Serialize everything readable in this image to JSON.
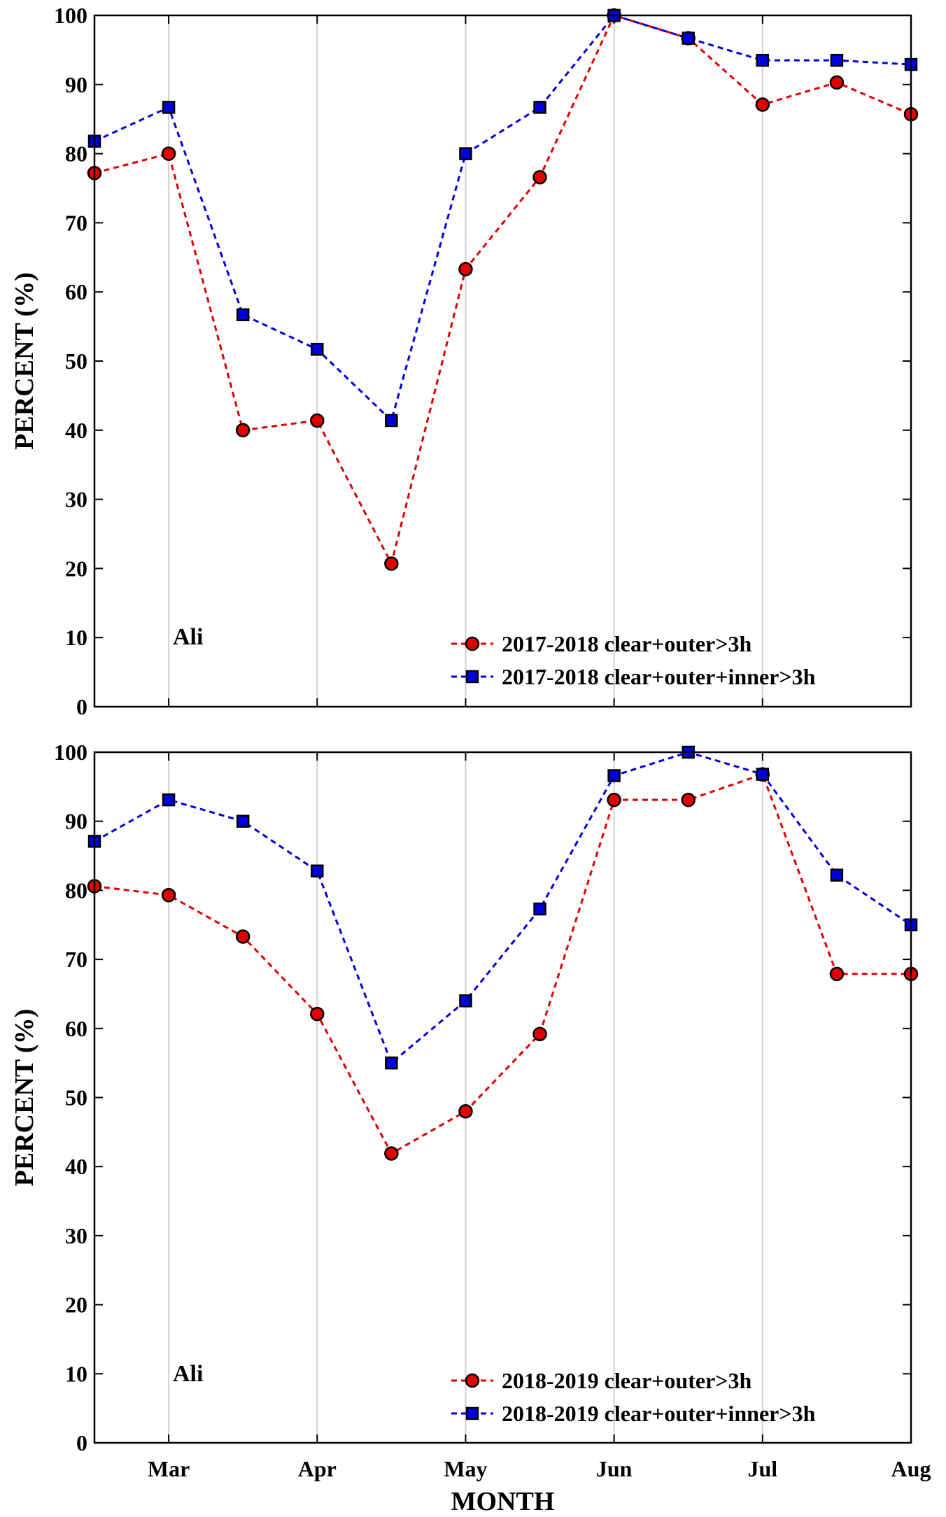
{
  "chart_data": [
    {
      "type": "line",
      "panel": "top",
      "station": "Ali",
      "xlabel": "",
      "ylabel": "PERCENT (%)",
      "ylim": [
        0,
        100
      ],
      "yticks": [
        "0",
        "10",
        "20",
        "30",
        "40",
        "50",
        "60",
        "70",
        "80",
        "90",
        "100"
      ],
      "xtick_labels": [],
      "x": [
        2.5,
        3,
        3.5,
        4,
        4.5,
        5,
        5.5,
        6,
        6.5,
        7,
        7.5,
        8
      ],
      "grid": "vertical",
      "legend_position": "bottom-right",
      "series": [
        {
          "name": "2017-2018 clear+outer>3h",
          "color": "#e00000",
          "marker": "circle",
          "values": [
            77.2,
            80.0,
            40.0,
            41.4,
            20.7,
            63.3,
            76.6,
            100.0,
            96.7,
            87.1,
            90.3,
            85.7
          ]
        },
        {
          "name": "2017-2018 clear+outer+inner>3h",
          "color": "#0000dd",
          "marker": "square",
          "values": [
            81.8,
            86.7,
            56.7,
            51.7,
            41.4,
            80.0,
            86.7,
            100.0,
            96.7,
            93.5,
            93.5,
            92.9
          ]
        }
      ]
    },
    {
      "type": "line",
      "panel": "bottom",
      "station": "Ali",
      "xlabel": "MONTH",
      "ylabel": "PERCENT (%)",
      "ylim": [
        0,
        100
      ],
      "yticks": [
        "0",
        "10",
        "20",
        "30",
        "40",
        "50",
        "60",
        "70",
        "80",
        "90",
        "100"
      ],
      "xtick_labels": [
        "Mar",
        "Apr",
        "May",
        "Jun",
        "Jul",
        "Aug"
      ],
      "x": [
        2.5,
        3,
        3.5,
        4,
        4.5,
        5,
        5.5,
        6,
        6.5,
        7,
        7.5,
        8
      ],
      "grid": "vertical",
      "legend_position": "bottom-right",
      "series": [
        {
          "name": "2018-2019 clear+outer>3h",
          "color": "#e00000",
          "marker": "circle",
          "values": [
            80.6,
            79.3,
            73.3,
            62.1,
            41.9,
            48.0,
            59.2,
            93.1,
            93.1,
            96.8,
            67.9,
            67.9
          ]
        },
        {
          "name": "2018-2019 clear+outer+inner>3h",
          "color": "#0000dd",
          "marker": "square",
          "values": [
            87.1,
            93.1,
            90.0,
            82.8,
            55.0,
            64.0,
            77.3,
            96.6,
            100.0,
            96.8,
            82.2,
            75.0
          ]
        }
      ]
    }
  ]
}
